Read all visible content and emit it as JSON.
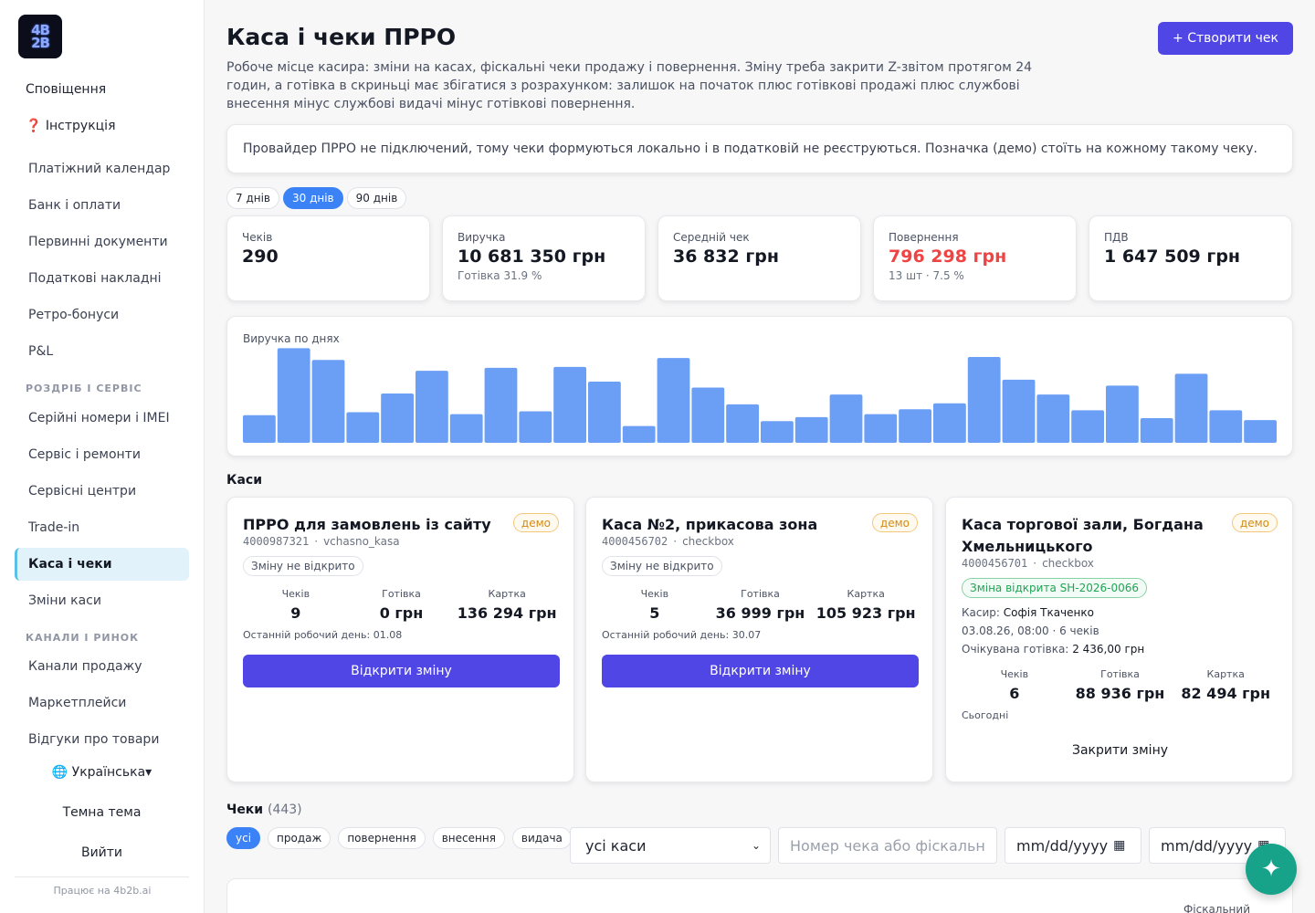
{
  "sidebar": {
    "top": [
      "Сповіщення",
      "❓ Інструкція"
    ],
    "items_main": [
      "Платіжний календар",
      "Банк і оплати",
      "Первинні документи",
      "Податкові накладні",
      "Ретро-бонуси",
      "P&L"
    ],
    "section_retail": "РОЗДРІБ І СЕРВІС",
    "items_retail": [
      "Серійні номери і IMEI",
      "Сервіс і ремонти",
      "Сервісні центри",
      "Trade-in",
      "Каса і чеки",
      "Зміни каси"
    ],
    "active": "Каса і чеки",
    "section_channels": "КАНАЛИ І РИНОК",
    "items_channels": [
      "Канали продажу",
      "Маркетплейси",
      "Відгуки про товари"
    ],
    "language": "🌐 Українська▾",
    "theme": "Темна тема",
    "logout": "Вийти",
    "footer": "Працює на 4b2b.ai",
    "logo_icon": "4b2b-logo"
  },
  "header": {
    "title": "Каса і чеки ПРРО",
    "create_button": "+ Створити чек",
    "description": "Робоче місце касира: зміни на касах, фіскальні чеки продажу і повернення. Зміну треба закрити Z-звітом протягом 24 годин, а готівка в скриньці має збігатися з розрахунком: залишок на початок плюс готівкові продажі плюс службові внесення мінус службові видачі мінус готівкові повернення."
  },
  "notice": "Провайдер ПРРО не підключений, тому чеки формуються локально і в податковій не реєструються. Позначка (демо) стоїть на кожному такому чеку.",
  "periods": [
    "7 днів",
    "30 днів",
    "90 днів"
  ],
  "active_period": "30 днів",
  "kpis": [
    {
      "label": "Чеків",
      "value": "290",
      "sub": ""
    },
    {
      "label": "Виручка",
      "value": "10 681 350 грн",
      "sub": "Готівка 31.9 %"
    },
    {
      "label": "Середній чек",
      "value": "36 832 грн",
      "sub": ""
    },
    {
      "label": "Повернення",
      "value": "796 298 грн",
      "sub": "13 шт · 7.5 %"
    },
    {
      "label": "ПДВ",
      "value": "1 647 509 грн",
      "sub": ""
    }
  ],
  "colors": {
    "accent": "#4f46e5",
    "bar": "#6b9ff5",
    "refund": "#ef4444",
    "open": "#22a355",
    "demo": "#d48a12"
  },
  "chart_data": {
    "type": "bar",
    "title": "Виручка по днях",
    "values": [
      28,
      96,
      84,
      31,
      50,
      73,
      29,
      76,
      32,
      77,
      62,
      17,
      86,
      56,
      39,
      22,
      26,
      49,
      29,
      34,
      40,
      87,
      64,
      49,
      33,
      58,
      25,
      70,
      33,
      23
    ],
    "ylim": [
      0,
      100
    ]
  },
  "kasy_section": "Каси",
  "kasy": [
    {
      "name": "ПРРО для замовлень із сайту",
      "badge": "демо",
      "fiscal": "4000987321",
      "provider": "vchasno_kasa",
      "status": "Зміну не відкрито",
      "stat_labels": [
        "Чеків",
        "Готівка",
        "Картка"
      ],
      "stat_values": [
        "9",
        "0 грн",
        "136 294 грн"
      ],
      "last_day": "Останній робочий день: 01.08",
      "action": "Відкрити зміну"
    },
    {
      "name": "Каса №2, прикасова зона",
      "badge": "демо",
      "fiscal": "4000456702",
      "provider": "checkbox",
      "status": "Зміну не відкрито",
      "stat_labels": [
        "Чеків",
        "Готівка",
        "Картка"
      ],
      "stat_values": [
        "5",
        "36 999 грн",
        "105 923 грн"
      ],
      "last_day": "Останній робочий день: 30.07",
      "action": "Відкрити зміну"
    },
    {
      "name": "Каса торгової зали, Богдана Хмельницького",
      "badge": "демо",
      "fiscal": "4000456701",
      "provider": "checkbox",
      "status": "Зміна відкрита SH-2026-0066",
      "cashier_label": "Касир:",
      "cashier": "Софія Ткаченко",
      "opened": "03.08.26, 08:00 · 6 чеків",
      "expected_label": "Очікувана готівка:",
      "expected": "2 436,00 грн",
      "stat_labels": [
        "Чеків",
        "Готівка",
        "Картка"
      ],
      "stat_values": [
        "6",
        "88 936 грн",
        "82 494 грн"
      ],
      "today": "Сьогодні",
      "action": "Закрити зміну"
    }
  ],
  "checks": {
    "title": "Чеки",
    "count": "(443)",
    "filters": [
      "усі",
      "продаж",
      "повернення",
      "внесення",
      "видача"
    ],
    "active_filter": "усі",
    "kasa_select": "усі каси",
    "search_placeholder": "Номер чека або фіскальн",
    "date_from": "mm/dd/yyyy",
    "date_to": "mm/dd/yyyy",
    "column_fiscal": "Фіскальний"
  },
  "fab_icon": "sparkle-icon"
}
